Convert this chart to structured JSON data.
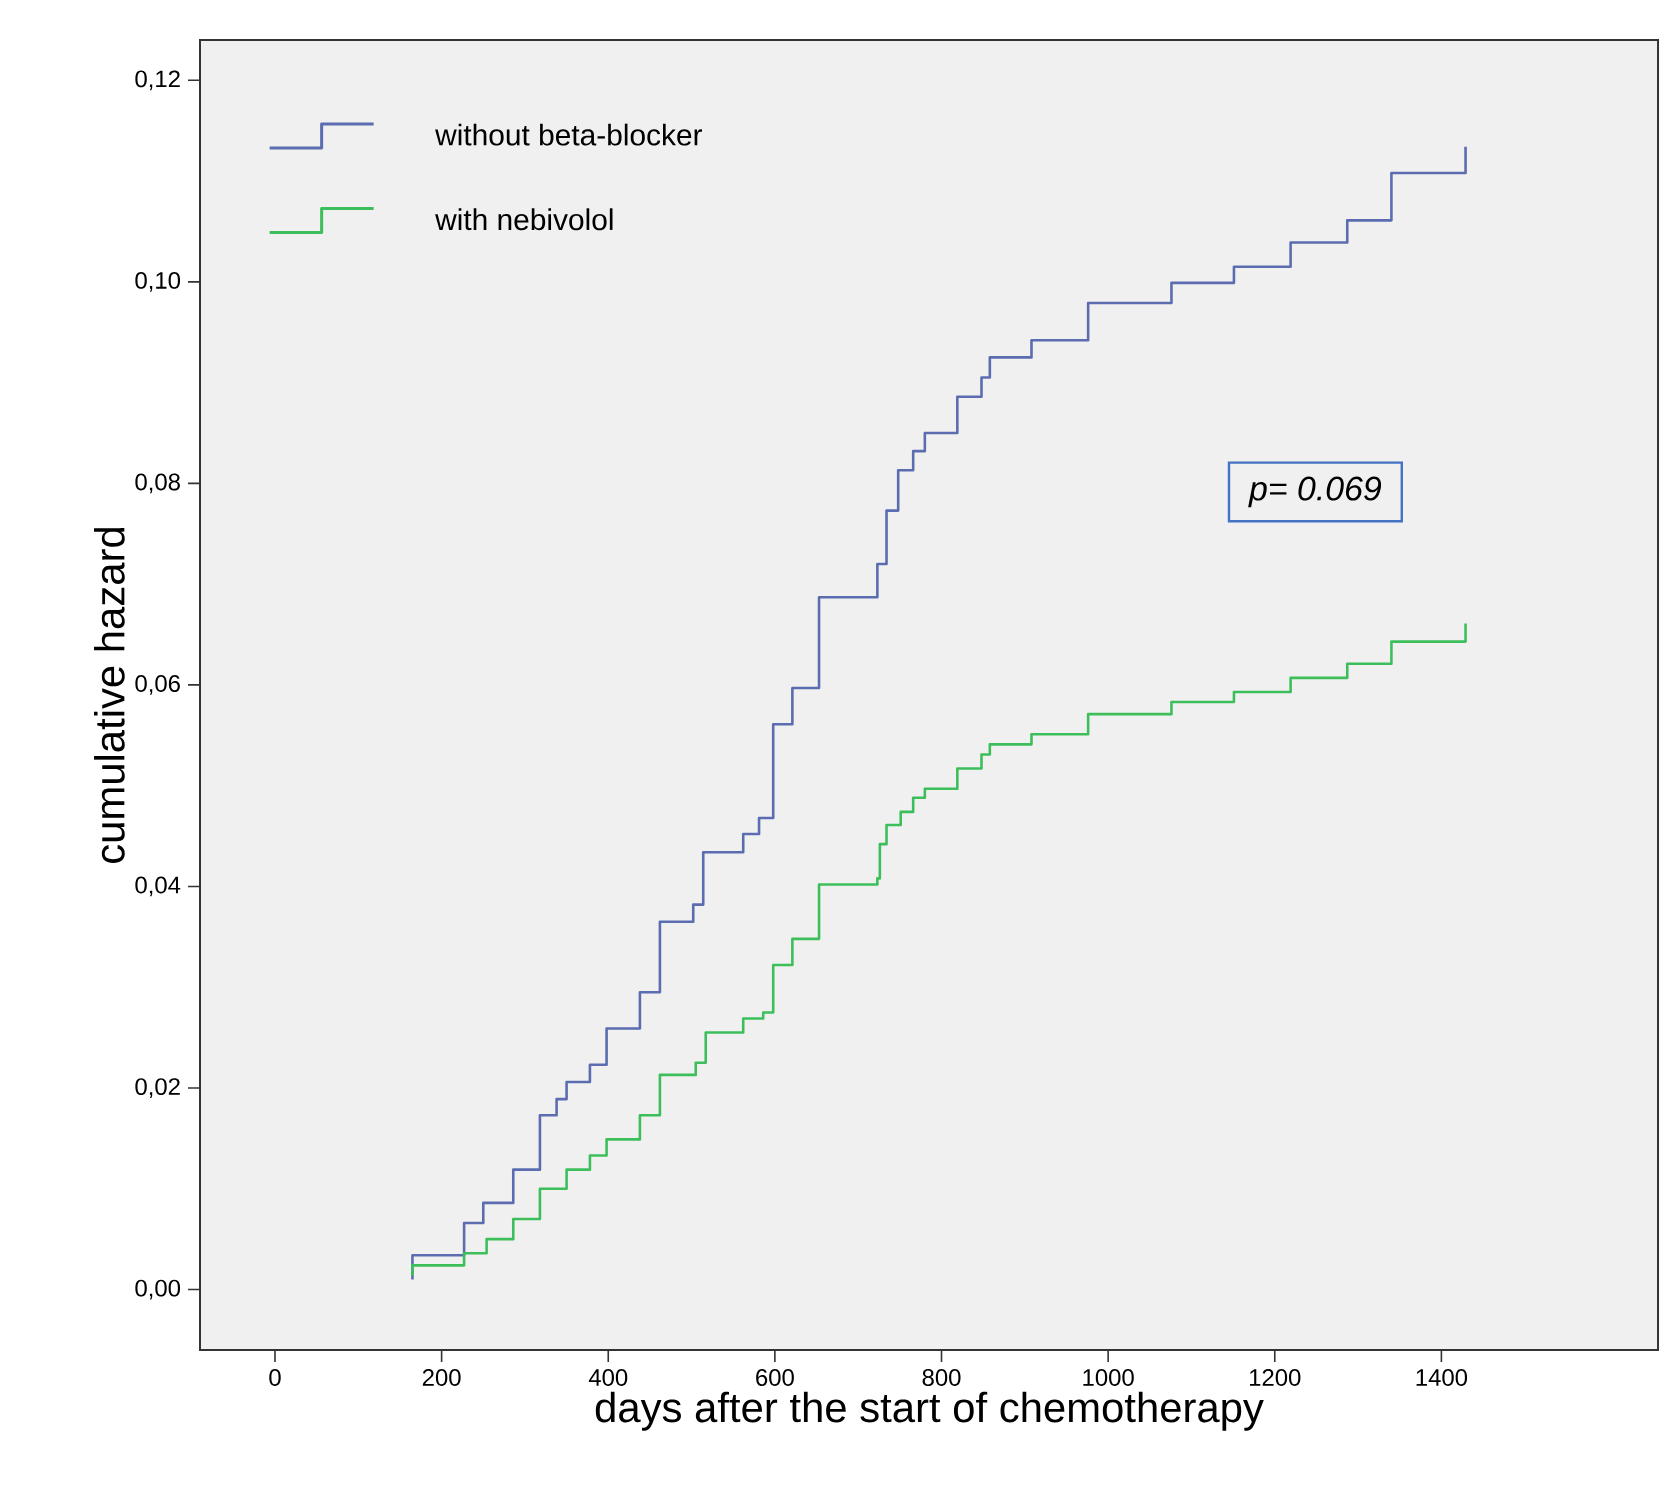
{
  "chart_data": {
    "type": "step",
    "xlabel": "days after the start of chemotherapy",
    "ylabel": "cumulative hazard",
    "xlim": [
      -90,
      1660
    ],
    "ylim": [
      -0.006,
      0.124
    ],
    "xticks": [
      0,
      200,
      400,
      600,
      800,
      1000,
      1200,
      1400
    ],
    "yticks": [
      {
        "value": 0,
        "label": "0,00"
      },
      {
        "value": 0.02,
        "label": "0,02"
      },
      {
        "value": 0.04,
        "label": "0,04"
      },
      {
        "value": 0.06,
        "label": "0,06"
      },
      {
        "value": 0.08,
        "label": "0,08"
      },
      {
        "value": 0.1,
        "label": "0,10"
      },
      {
        "value": 0.12,
        "label": "0,12"
      }
    ],
    "legend": "top left",
    "marker": "none",
    "annotations": [
      "p= 0.069"
    ],
    "series": [
      {
        "name": "without beta-blocker",
        "color": "#5b6cb0",
        "x": [
          165,
          165,
          227,
          250,
          286,
          318,
          338,
          350,
          378,
          398,
          438,
          462,
          502,
          514,
          562,
          581,
          598,
          621,
          653,
          723,
          734,
          748,
          766,
          780,
          819,
          848,
          858,
          908,
          976,
          1076,
          1151,
          1219,
          1287,
          1340,
          1429,
          1429
        ],
        "values": [
          0.001,
          0.0034,
          0.0066,
          0.0086,
          0.0119,
          0.0173,
          0.0189,
          0.0206,
          0.0223,
          0.0259,
          0.0295,
          0.0365,
          0.0382,
          0.0434,
          0.0452,
          0.0468,
          0.0561,
          0.0597,
          0.0687,
          0.072,
          0.0773,
          0.0813,
          0.0832,
          0.085,
          0.0886,
          0.0905,
          0.0925,
          0.0942,
          0.0979,
          0.0999,
          0.1015,
          0.1039,
          0.1061,
          0.1108,
          0.1108,
          0.1134
        ]
      },
      {
        "name": "with nebivolol",
        "color": "#3cbf5a",
        "x": [
          165,
          165,
          227,
          254,
          286,
          318,
          350,
          378,
          398,
          438,
          462,
          505,
          517,
          562,
          586,
          598,
          621,
          653,
          723,
          726,
          734,
          751,
          766,
          780,
          819,
          848,
          858,
          908,
          976,
          1076,
          1151,
          1219,
          1287,
          1340,
          1429,
          1429
        ],
        "values": [
          0.0014,
          0.0024,
          0.0036,
          0.005,
          0.007,
          0.01,
          0.0119,
          0.0133,
          0.0149,
          0.0173,
          0.0213,
          0.0225,
          0.0255,
          0.0269,
          0.0275,
          0.0322,
          0.0348,
          0.0402,
          0.0408,
          0.0442,
          0.0461,
          0.0474,
          0.0488,
          0.0497,
          0.0517,
          0.0531,
          0.0541,
          0.0551,
          0.0571,
          0.0583,
          0.0593,
          0.0607,
          0.0621,
          0.0643,
          0.0643,
          0.0661
        ]
      }
    ]
  }
}
